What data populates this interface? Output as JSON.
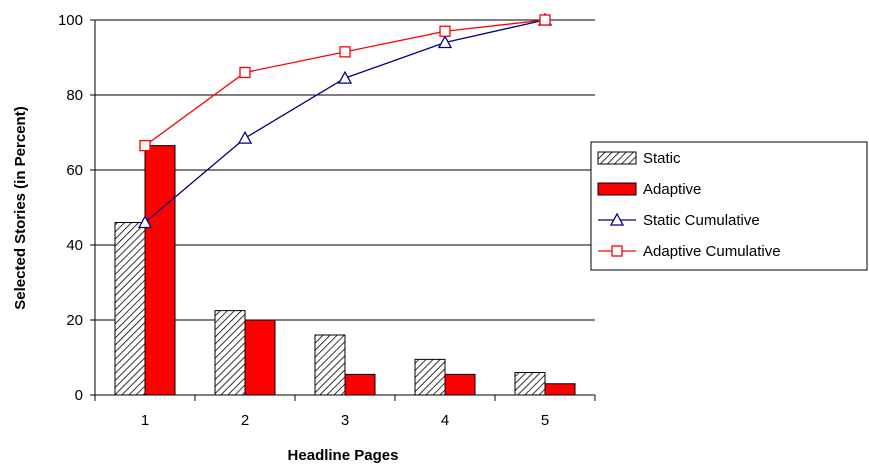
{
  "chart_data": {
    "type": "bar",
    "categories": [
      "1",
      "2",
      "3",
      "4",
      "5"
    ],
    "xlabel": "Headline Pages",
    "ylabel": "Selected Stories (in Percent)",
    "ylim": [
      0,
      100
    ],
    "yticks": [
      0,
      20,
      40,
      60,
      80,
      100
    ],
    "grid": "horizontal",
    "legend_position": "right",
    "series": [
      {
        "name": "Static",
        "kind": "bar",
        "pattern": "diagonal-hatch",
        "color": "#ffffff",
        "stroke": "#000000",
        "values": [
          46,
          22.5,
          16,
          9.5,
          6
        ]
      },
      {
        "name": "Adaptive",
        "kind": "bar",
        "color": "#ff0000",
        "stroke": "#000000",
        "values": [
          66.5,
          20,
          5.5,
          5.5,
          3
        ]
      },
      {
        "name": "Static Cumulative",
        "kind": "line",
        "marker": "triangle",
        "color": "#000080",
        "values": [
          46,
          68.5,
          84.5,
          94,
          100
        ]
      },
      {
        "name": "Adaptive Cumulative",
        "kind": "line",
        "marker": "square",
        "color": "#ff0000",
        "values": [
          66.5,
          86,
          91.5,
          97,
          100
        ]
      }
    ]
  }
}
